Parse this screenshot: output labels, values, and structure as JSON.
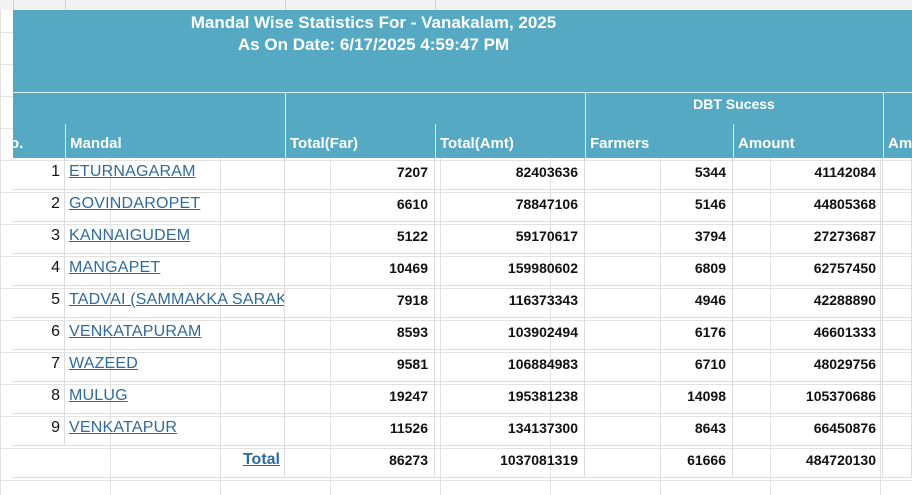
{
  "report": {
    "title_line1": "Mandal Wise Statistics For - Vanakalam, 2025",
    "title_line2": "As On Date: 6/17/2025 4:59:47 PM",
    "group_header": "DBT Sucess"
  },
  "columns": {
    "sno": "o.",
    "mandal": "Mandal",
    "total_far": "Total(Far)",
    "total_amt": "Total(Amt)",
    "farmers": "Farmers",
    "amount": "Amount",
    "am": "Am"
  },
  "rows": [
    {
      "sno": "1",
      "mandal": "ETURNAGARAM",
      "total_far": "7207",
      "total_amt": "82403636",
      "farmers": "5344",
      "amount": "41142084"
    },
    {
      "sno": "2",
      "mandal": "GOVINDAROPET",
      "total_far": "6610",
      "total_amt": "78847106",
      "farmers": "5146",
      "amount": "44805368"
    },
    {
      "sno": "3",
      "mandal": "KANNAIGUDEM",
      "total_far": "5122",
      "total_amt": "59170617",
      "farmers": "3794",
      "amount": "27273687"
    },
    {
      "sno": "4",
      "mandal": "MANGAPET",
      "total_far": "10469",
      "total_amt": "159980602",
      "farmers": "6809",
      "amount": "62757450"
    },
    {
      "sno": "5",
      "mandal": "TADVAI (SAMMAKKA SARAKKA)",
      "total_far": "7918",
      "total_amt": "116373343",
      "farmers": "4946",
      "amount": "42288890"
    },
    {
      "sno": "6",
      "mandal": "VENKATAPURAM",
      "total_far": "8593",
      "total_amt": "103902494",
      "farmers": "6176",
      "amount": "46601333"
    },
    {
      "sno": "7",
      "mandal": "WAZEED",
      "total_far": "9581",
      "total_amt": "106884983",
      "farmers": "6710",
      "amount": "48029756"
    },
    {
      "sno": "8",
      "mandal": "MULUG",
      "total_far": "19247",
      "total_amt": "195381238",
      "farmers": "14098",
      "amount": "105370686"
    },
    {
      "sno": "9",
      "mandal": "VENKATAPUR",
      "total_far": "11526",
      "total_amt": "134137300",
      "farmers": "8643",
      "amount": "66450876"
    }
  ],
  "totals": {
    "label": "Total",
    "total_far": "86273",
    "total_amt": "1037081319",
    "farmers": "61666",
    "amount": "484720130"
  },
  "colors": {
    "header_bg": "#55a9c2",
    "link": "#2f6b9a"
  }
}
